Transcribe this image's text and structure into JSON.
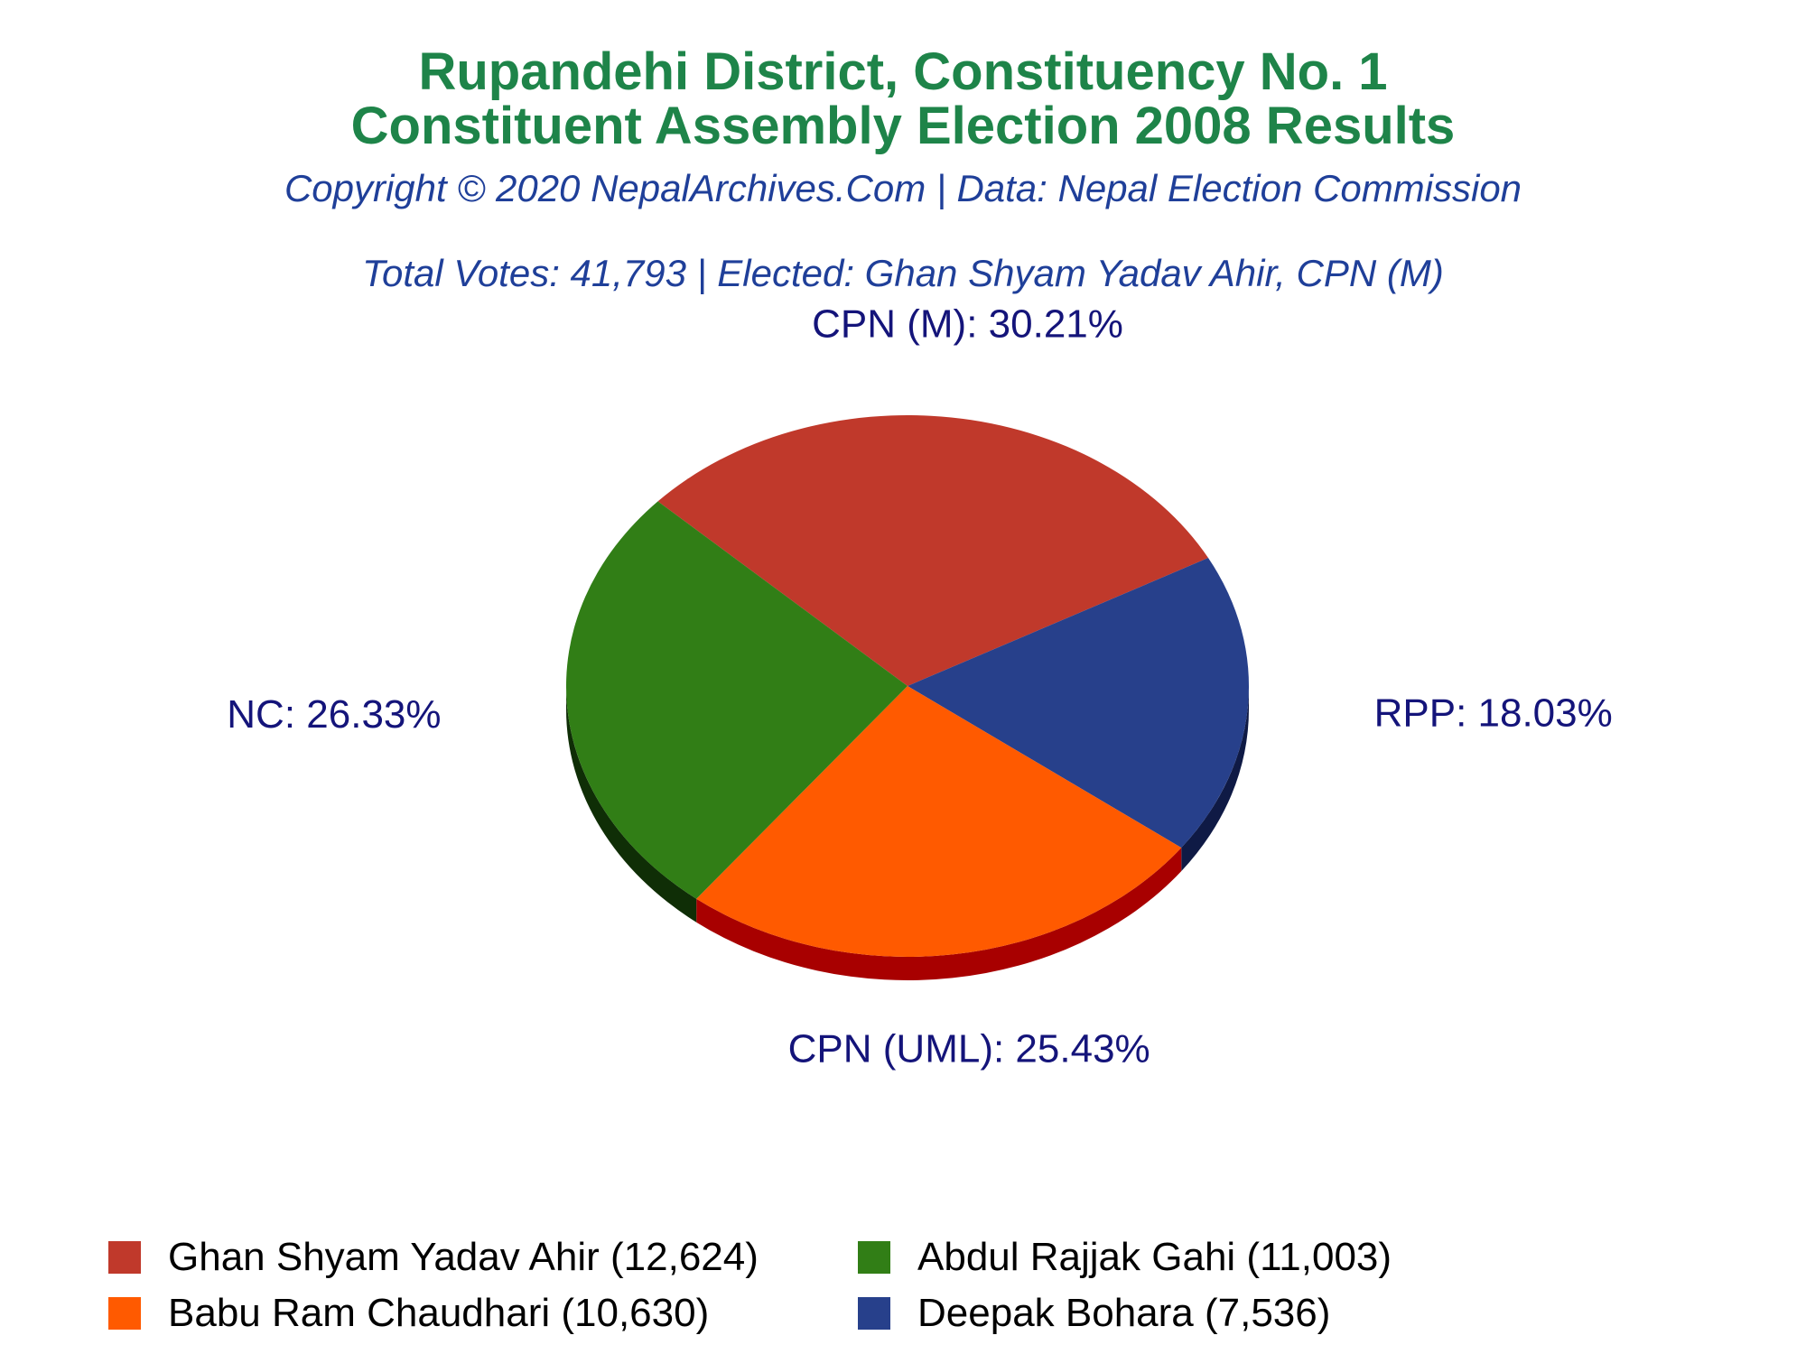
{
  "chart_data": {
    "type": "pie",
    "title": "Rupandehi District, Constituency No. 1",
    "subtitle": "Constituent Assembly Election 2008 Results",
    "copyright": "Copyright © 2020 NepalArchives.Com | Data: Nepal Election Commission",
    "summary": "Total Votes: 41,793 | Elected: Ghan Shyam Yadav Ahir, CPN (M)",
    "slices": [
      {
        "party": "CPN (M)",
        "label": "CPN (M): 30.21%",
        "percent": 30.21,
        "candidate": "Ghan Shyam Yadav Ahir (12,624)",
        "votes": 12624,
        "color": "#c0392b",
        "side_color": "#7a1f14"
      },
      {
        "party": "RPP",
        "label": "RPP: 18.03%",
        "percent": 18.03,
        "candidate": "Deepak Bohara (7,536)",
        "votes": 7536,
        "color": "#27408b",
        "side_color": "#0f1a45"
      },
      {
        "party": "CPN (UML)",
        "label": "CPN (UML): 25.43%",
        "percent": 25.43,
        "candidate": "Babu Ram Chaudhari (10,630)",
        "votes": 10630,
        "color": "#ff5a00",
        "side_color": "#a80000"
      },
      {
        "party": "NC",
        "label": "NC: 26.33%",
        "percent": 26.33,
        "candidate": "Abdul Rajjak Gahi (11,003)",
        "votes": 11003,
        "color": "#317e16",
        "side_color": "#0f2e06"
      }
    ],
    "legend_order": [
      0,
      3,
      2,
      1
    ],
    "legend_placement": "bottom"
  },
  "colors": {
    "title": "#1e8449",
    "subtitle": "#1f3f99",
    "label": "#14147a"
  }
}
